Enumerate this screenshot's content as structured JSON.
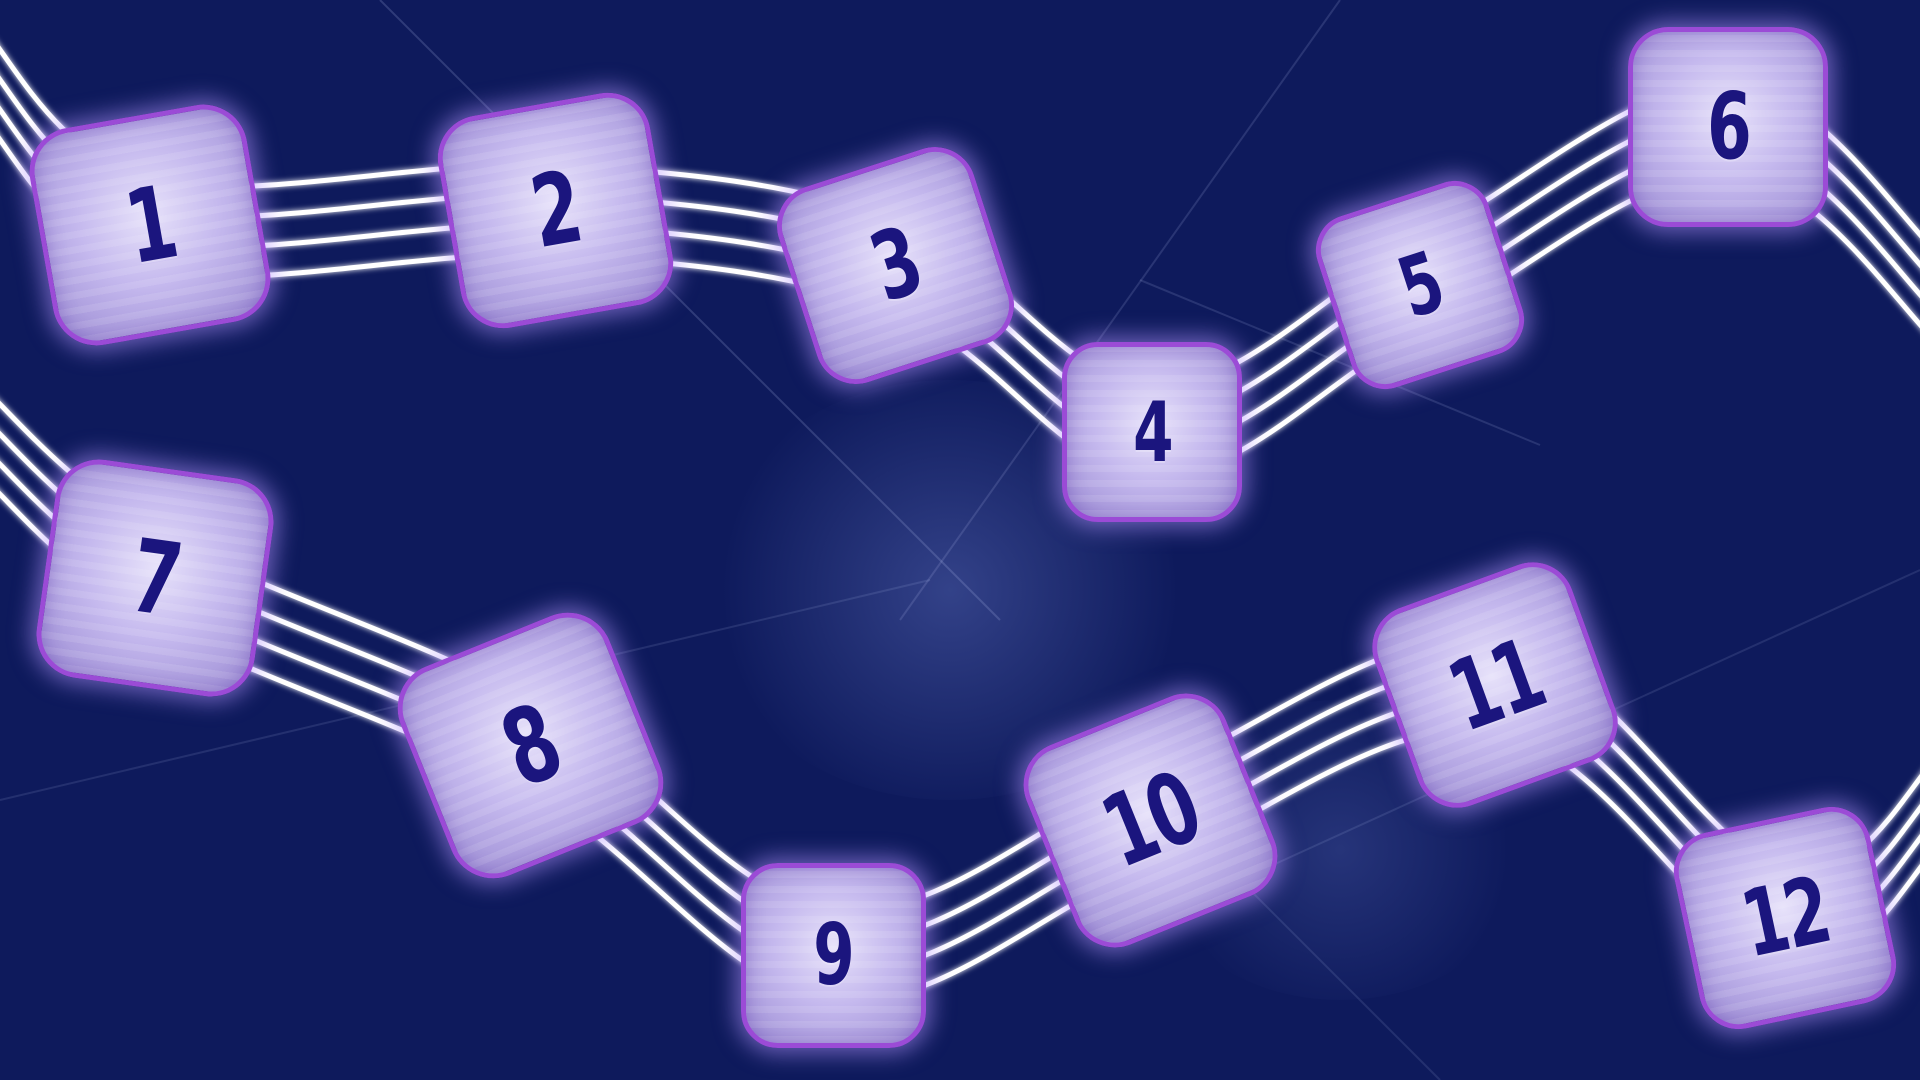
{
  "colors": {
    "background": "#0e1a5c",
    "tile_border": "#9b4bd6",
    "tile_number": "#1b157e",
    "wire": "#ffffff"
  },
  "tiles": [
    {
      "label": "1"
    },
    {
      "label": "2"
    },
    {
      "label": "3"
    },
    {
      "label": "4"
    },
    {
      "label": "5"
    },
    {
      "label": "6"
    },
    {
      "label": "7"
    },
    {
      "label": "8"
    },
    {
      "label": "9"
    },
    {
      "label": "10"
    },
    {
      "label": "11"
    },
    {
      "label": "12"
    }
  ]
}
